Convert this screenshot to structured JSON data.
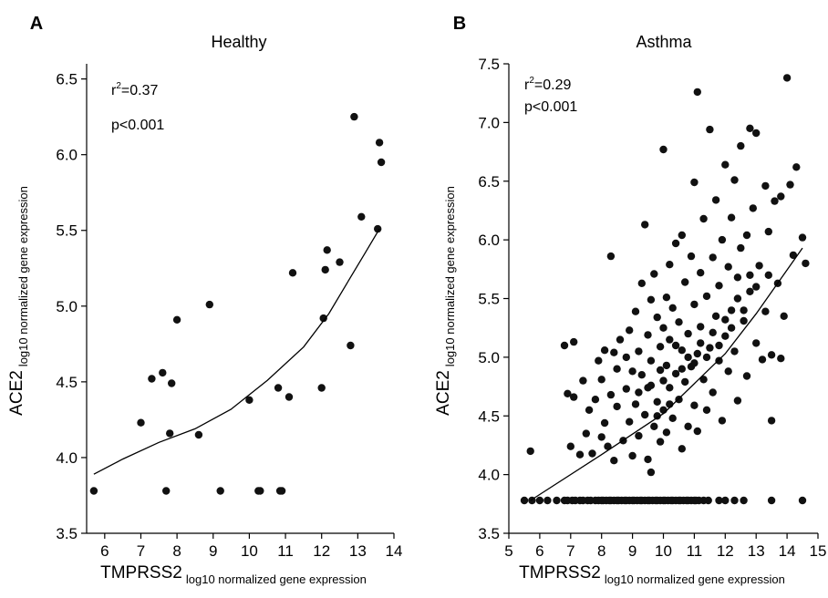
{
  "chart_data": [
    {
      "panel": "A",
      "type": "scatter",
      "title": "Healthy",
      "xlabel": "TMPRSS2",
      "xlabel_sub": "log10 normalized gene expression",
      "ylabel": "ACE2",
      "ylabel_sub": "log10 normalized gene expression",
      "xlim": [
        5.5,
        14
      ],
      "ylim": [
        3.5,
        6.6
      ],
      "xticks": [
        6,
        7,
        8,
        9,
        10,
        11,
        12,
        13,
        14
      ],
      "yticks": [
        3.5,
        4.0,
        4.5,
        5.0,
        5.5,
        6.0,
        6.5
      ],
      "xtick_labels": [
        "6",
        "7",
        "8",
        "9",
        "10",
        "11",
        "12",
        "13",
        "14"
      ],
      "ytick_labels": [
        "3.5",
        "4.0",
        "4.5",
        "5.0",
        "5.5",
        "6.0",
        "6.5"
      ],
      "grid": false,
      "annotations": {
        "r2_base": "r",
        "r2_sup": "2",
        "r2_value": "=0.37",
        "p": "p<0.001"
      },
      "points": [
        [
          5.7,
          3.78
        ],
        [
          7.0,
          4.23
        ],
        [
          7.3,
          4.52
        ],
        [
          7.6,
          4.56
        ],
        [
          7.8,
          4.16
        ],
        [
          7.85,
          4.49
        ],
        [
          8.0,
          4.91
        ],
        [
          7.7,
          3.78
        ],
        [
          8.6,
          4.15
        ],
        [
          8.9,
          5.01
        ],
        [
          9.2,
          3.78
        ],
        [
          10.0,
          4.38
        ],
        [
          10.25,
          3.78
        ],
        [
          10.3,
          3.78
        ],
        [
          10.8,
          4.46
        ],
        [
          10.85,
          3.78
        ],
        [
          10.9,
          3.78
        ],
        [
          11.1,
          4.4
        ],
        [
          11.2,
          5.22
        ],
        [
          12.0,
          4.46
        ],
        [
          12.05,
          4.92
        ],
        [
          12.1,
          5.24
        ],
        [
          12.15,
          5.37
        ],
        [
          12.5,
          5.29
        ],
        [
          12.8,
          4.74
        ],
        [
          12.9,
          6.25
        ],
        [
          13.1,
          5.59
        ],
        [
          13.55,
          5.51
        ],
        [
          13.6,
          6.08
        ],
        [
          13.65,
          5.95
        ]
      ],
      "fit": [
        [
          5.7,
          3.89
        ],
        [
          6.5,
          3.99
        ],
        [
          7.5,
          4.1
        ],
        [
          8.5,
          4.19
        ],
        [
          9.5,
          4.32
        ],
        [
          10.5,
          4.51
        ],
        [
          11.5,
          4.73
        ],
        [
          12.2,
          4.95
        ],
        [
          12.8,
          5.19
        ],
        [
          13.2,
          5.35
        ],
        [
          13.6,
          5.51
        ]
      ]
    },
    {
      "panel": "B",
      "type": "scatter",
      "title": "Asthma",
      "xlabel": "TMPRSS2",
      "xlabel_sub": "log10 normalized gene expression",
      "ylabel": "ACE2",
      "ylabel_sub": "log10 normalized gene expression",
      "xlim": [
        5,
        15
      ],
      "ylim": [
        3.5,
        7.5
      ],
      "xticks": [
        5,
        6,
        7,
        8,
        9,
        10,
        11,
        12,
        13,
        14,
        15
      ],
      "yticks": [
        3.5,
        4.0,
        4.5,
        5.0,
        5.5,
        6.0,
        6.5,
        7.0,
        7.5
      ],
      "xtick_labels": [
        "5",
        "6",
        "7",
        "8",
        "9",
        "10",
        "11",
        "12",
        "13",
        "14",
        "15"
      ],
      "ytick_labels": [
        "3.5",
        "4.0",
        "4.5",
        "5.0",
        "5.5",
        "6.0",
        "6.5",
        "7.0",
        "7.5"
      ],
      "grid": false,
      "annotations": {
        "r2_base": "r",
        "r2_sup": "2",
        "r2_value": "=0.29",
        "p": "p<0.001"
      },
      "baseline_points": {
        "y": 3.78,
        "x": [
          5.5,
          5.75,
          6.0,
          6.25,
          6.55,
          6.8,
          7.05,
          7.3,
          7.55,
          7.8,
          8.05,
          8.3,
          8.55,
          8.8,
          9.05,
          9.3,
          9.55,
          9.8,
          10.05,
          10.3,
          10.55,
          10.8,
          11.05,
          11.3,
          6.9,
          7.15,
          7.4,
          7.65,
          7.9,
          8.15,
          8.4,
          8.65,
          8.9,
          9.15,
          9.4,
          9.65,
          9.9,
          10.15,
          10.4,
          10.65,
          10.9,
          11.15,
          8.0,
          8.25,
          8.5,
          8.75,
          9.0,
          9.25,
          9.5,
          9.75,
          10.0,
          10.25,
          10.5,
          10.75,
          11.0,
          11.45,
          11.8,
          12.0,
          12.3,
          12.6,
          13.5,
          14.5
        ]
      },
      "points": [
        [
          5.7,
          4.2
        ],
        [
          6.8,
          5.1
        ],
        [
          6.9,
          4.69
        ],
        [
          7.0,
          4.24
        ],
        [
          7.1,
          5.13
        ],
        [
          7.1,
          4.66
        ],
        [
          7.3,
          4.17
        ],
        [
          7.4,
          4.8
        ],
        [
          7.5,
          4.35
        ],
        [
          7.6,
          4.55
        ],
        [
          7.7,
          4.18
        ],
        [
          7.8,
          4.64
        ],
        [
          7.9,
          4.97
        ],
        [
          8.0,
          4.32
        ],
        [
          8.0,
          4.81
        ],
        [
          8.1,
          4.44
        ],
        [
          8.1,
          5.06
        ],
        [
          8.2,
          4.24
        ],
        [
          8.3,
          4.68
        ],
        [
          8.3,
          5.86
        ],
        [
          8.4,
          4.12
        ],
        [
          8.5,
          4.58
        ],
        [
          8.5,
          4.9
        ],
        [
          8.6,
          5.15
        ],
        [
          8.7,
          4.29
        ],
        [
          8.8,
          4.73
        ],
        [
          8.9,
          4.45
        ],
        [
          8.9,
          5.23
        ],
        [
          9.0,
          4.16
        ],
        [
          9.0,
          4.88
        ],
        [
          9.1,
          4.6
        ],
        [
          9.1,
          5.39
        ],
        [
          9.2,
          4.33
        ],
        [
          9.2,
          5.05
        ],
        [
          9.3,
          4.85
        ],
        [
          9.3,
          5.63
        ],
        [
          9.4,
          4.51
        ],
        [
          9.4,
          6.13
        ],
        [
          9.5,
          4.13
        ],
        [
          9.5,
          4.74
        ],
        [
          9.5,
          5.19
        ],
        [
          9.6,
          4.02
        ],
        [
          9.6,
          4.97
        ],
        [
          9.6,
          5.49
        ],
        [
          9.7,
          4.41
        ],
        [
          9.7,
          5.71
        ],
        [
          9.8,
          4.62
        ],
        [
          9.8,
          5.34
        ],
        [
          9.9,
          4.28
        ],
        [
          9.9,
          5.09
        ],
        [
          9.9,
          4.89
        ],
        [
          10.0,
          4.55
        ],
        [
          10.0,
          5.25
        ],
        [
          10.0,
          6.77
        ],
        [
          10.1,
          4.93
        ],
        [
          10.1,
          5.51
        ],
        [
          10.1,
          4.36
        ],
        [
          10.2,
          4.74
        ],
        [
          10.2,
          5.79
        ],
        [
          10.2,
          5.15
        ],
        [
          10.3,
          4.48
        ],
        [
          10.3,
          5.42
        ],
        [
          10.4,
          4.86
        ],
        [
          10.4,
          5.97
        ],
        [
          10.5,
          4.64
        ],
        [
          10.5,
          5.3
        ],
        [
          10.6,
          4.22
        ],
        [
          10.6,
          5.06
        ],
        [
          10.6,
          6.04
        ],
        [
          10.7,
          4.79
        ],
        [
          10.7,
          5.64
        ],
        [
          10.8,
          4.41
        ],
        [
          10.8,
          5.2
        ],
        [
          10.9,
          4.92
        ],
        [
          10.9,
          5.86
        ],
        [
          11.0,
          4.59
        ],
        [
          11.0,
          5.45
        ],
        [
          11.0,
          6.49
        ],
        [
          11.1,
          5.03
        ],
        [
          11.1,
          7.26
        ],
        [
          11.1,
          4.37
        ],
        [
          11.2,
          5.72
        ],
        [
          11.2,
          5.26
        ],
        [
          11.3,
          4.81
        ],
        [
          11.3,
          6.18
        ],
        [
          11.4,
          5.52
        ],
        [
          11.4,
          4.55
        ],
        [
          11.5,
          5.08
        ],
        [
          11.5,
          6.94
        ],
        [
          11.6,
          5.85
        ],
        [
          11.6,
          4.7
        ],
        [
          11.7,
          5.35
        ],
        [
          11.7,
          6.34
        ],
        [
          11.8,
          4.97
        ],
        [
          11.8,
          5.61
        ],
        [
          11.9,
          4.46
        ],
        [
          11.9,
          6.0
        ],
        [
          12.0,
          5.18
        ],
        [
          12.0,
          6.64
        ],
        [
          12.1,
          5.77
        ],
        [
          12.1,
          4.88
        ],
        [
          12.2,
          5.4
        ],
        [
          12.2,
          6.19
        ],
        [
          12.3,
          6.51
        ],
        [
          12.3,
          5.05
        ],
        [
          12.4,
          5.68
        ],
        [
          12.4,
          4.63
        ],
        [
          12.5,
          5.93
        ],
        [
          12.5,
          6.8
        ],
        [
          12.6,
          5.31
        ],
        [
          12.7,
          6.04
        ],
        [
          12.7,
          4.84
        ],
        [
          12.8,
          6.95
        ],
        [
          12.8,
          5.56
        ],
        [
          12.9,
          6.27
        ],
        [
          13.0,
          5.12
        ],
        [
          13.0,
          6.91
        ],
        [
          13.1,
          5.78
        ],
        [
          13.2,
          4.98
        ],
        [
          13.3,
          6.46
        ],
        [
          13.3,
          5.39
        ],
        [
          13.4,
          6.07
        ],
        [
          13.5,
          4.46
        ],
        [
          13.5,
          5.02
        ],
        [
          13.6,
          6.33
        ],
        [
          13.7,
          5.63
        ],
        [
          13.8,
          6.37
        ],
        [
          13.8,
          4.99
        ],
        [
          13.9,
          5.35
        ],
        [
          14.0,
          7.38
        ],
        [
          14.1,
          6.47
        ],
        [
          14.2,
          5.87
        ],
        [
          14.3,
          6.62
        ],
        [
          14.6,
          5.8
        ],
        [
          14.5,
          6.02
        ],
        [
          8.4,
          5.04
        ],
        [
          8.8,
          5.0
        ],
        [
          9.2,
          4.7
        ],
        [
          9.6,
          4.76
        ],
        [
          10.0,
          4.8
        ],
        [
          10.4,
          5.1
        ],
        [
          10.8,
          5.0
        ],
        [
          11.2,
          5.12
        ],
        [
          11.6,
          5.21
        ],
        [
          12.0,
          5.32
        ],
        [
          12.4,
          5.5
        ],
        [
          12.8,
          5.7
        ],
        [
          9.8,
          4.5
        ],
        [
          10.2,
          4.6
        ],
        [
          10.6,
          4.9
        ],
        [
          11.0,
          4.95
        ],
        [
          11.4,
          5.0
        ],
        [
          11.8,
          5.1
        ],
        [
          12.2,
          5.25
        ],
        [
          12.6,
          5.4
        ],
        [
          13.0,
          5.6
        ],
        [
          13.4,
          5.7
        ]
      ],
      "fit": [
        [
          5.7,
          3.78
        ],
        [
          8.0,
          4.17
        ],
        [
          10.0,
          4.52
        ],
        [
          12.0,
          5.03
        ],
        [
          13.0,
          5.37
        ],
        [
          14.5,
          5.93
        ]
      ]
    }
  ]
}
